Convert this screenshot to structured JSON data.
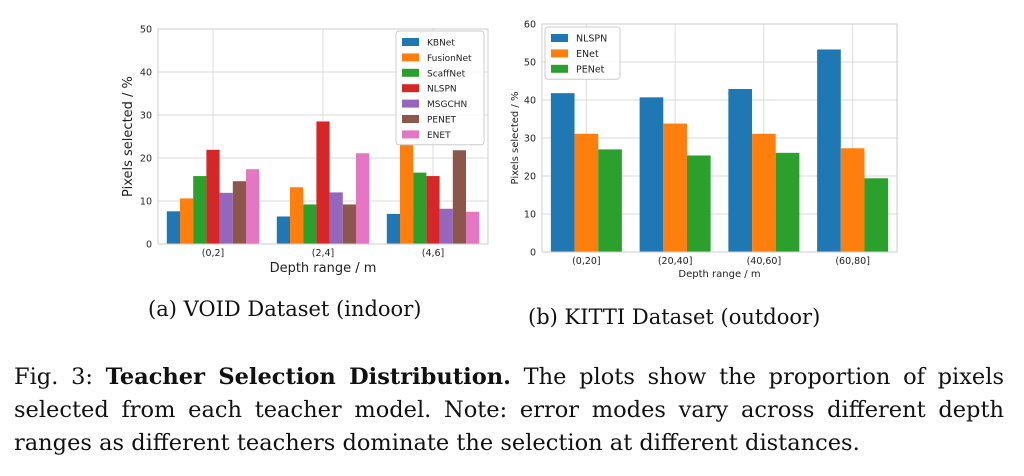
{
  "chart_data": [
    {
      "type": "bar",
      "title": "",
      "categories": [
        "(0,2]",
        "(2,4]",
        "(4,6]"
      ],
      "series": [
        {
          "name": "KBNet",
          "color": "#1f77b4",
          "values": [
            7.6,
            6.4,
            7.0
          ]
        },
        {
          "name": "FusionNet",
          "color": "#ff7f0e",
          "values": [
            10.6,
            13.2,
            23.2
          ]
        },
        {
          "name": "ScaffNet",
          "color": "#2ca02c",
          "values": [
            15.8,
            9.2,
            16.6
          ]
        },
        {
          "name": "NLSPN",
          "color": "#d62728",
          "values": [
            21.9,
            28.5,
            15.8
          ]
        },
        {
          "name": "MSGCHN",
          "color": "#9467bd",
          "values": [
            11.9,
            12.0,
            8.2
          ]
        },
        {
          "name": "PENET",
          "color": "#8c564b",
          "values": [
            14.6,
            9.2,
            21.8
          ]
        },
        {
          "name": "ENET",
          "color": "#e377c2",
          "values": [
            17.4,
            21.1,
            7.5
          ]
        }
      ],
      "xlabel": "Depth range / m",
      "ylabel": "Pixels selected / %",
      "ylim": [
        0,
        50
      ],
      "yticks": [
        0,
        10,
        20,
        30,
        40,
        50
      ],
      "grid": true,
      "legend": "top-right"
    },
    {
      "type": "bar",
      "title": "",
      "categories": [
        "(0,20]",
        "(20,40]",
        "(40,60]",
        "(60,80]"
      ],
      "series": [
        {
          "name": "NLSPN",
          "color": "#1f77b4",
          "values": [
            41.8,
            40.7,
            42.9,
            53.3
          ]
        },
        {
          "name": "ENet",
          "color": "#ff7f0e",
          "values": [
            31.1,
            33.8,
            31.1,
            27.3
          ]
        },
        {
          "name": "PENet",
          "color": "#2ca02c",
          "values": [
            27.0,
            25.4,
            26.1,
            19.4
          ]
        }
      ],
      "xlabel": "Depth range / m",
      "ylabel": "Pixels selected / %",
      "ylim": [
        0,
        60
      ],
      "yticks": [
        0,
        10,
        20,
        30,
        40,
        50,
        60
      ],
      "grid": true,
      "legend": "top-left"
    }
  ],
  "subcaptions": {
    "a": "(a) VOID Dataset (indoor)",
    "b": "(b) KITTI Dataset (outdoor)"
  },
  "caption": {
    "label": "Fig. 3: ",
    "bold": "Teacher Selection Distribution.",
    "text": " The plots show the proportion of pixels selected from each teacher model. Note: error modes vary across different depth ranges as different teachers dominate the selection at different distances."
  }
}
